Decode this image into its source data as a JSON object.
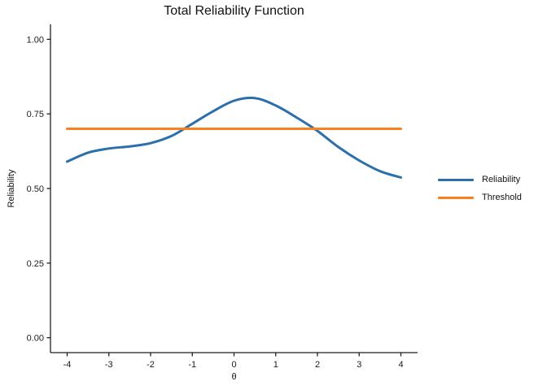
{
  "figure": {
    "background": "#ffffff"
  },
  "chart_data": {
    "type": "line",
    "title": "Total Reliability Function",
    "xlabel": "θ",
    "ylabel": "Reliability",
    "xlim": [
      -4,
      4
    ],
    "ylim": [
      0,
      1
    ],
    "x_ticks": [
      -4,
      -3,
      -2,
      -1,
      0,
      1,
      2,
      3,
      4
    ],
    "x_tick_labels": [
      "-4",
      "-3",
      "-2",
      "-1",
      "0",
      "1",
      "2",
      "3",
      "4"
    ],
    "y_ticks": [
      0,
      0.25,
      0.5,
      0.75,
      1
    ],
    "y_tick_labels": [
      "0.00",
      "0.25",
      "0.50",
      "0.75",
      "1.00"
    ],
    "grid": false,
    "legend_position": "right",
    "axis_color": "#1f1f1f",
    "text_color": "#111111",
    "threshold_value": 0.7,
    "series": [
      {
        "name": "Reliability",
        "color": "#2B6FAC",
        "smooth": true,
        "x": [
          -4,
          -3.5,
          -3,
          -2.5,
          -2,
          -1.5,
          -1,
          -0.5,
          0,
          0.5,
          1,
          1.5,
          2,
          2.5,
          3,
          3.5,
          4
        ],
        "y": [
          0.59,
          0.62,
          0.634,
          0.641,
          0.652,
          0.676,
          0.717,
          0.759,
          0.794,
          0.803,
          0.778,
          0.738,
          0.693,
          0.639,
          0.594,
          0.558,
          0.537
        ]
      },
      {
        "name": "Threshold",
        "color": "#F8801F",
        "smooth": false,
        "x": [
          -4,
          4
        ],
        "y": [
          0.7,
          0.7
        ]
      }
    ]
  }
}
